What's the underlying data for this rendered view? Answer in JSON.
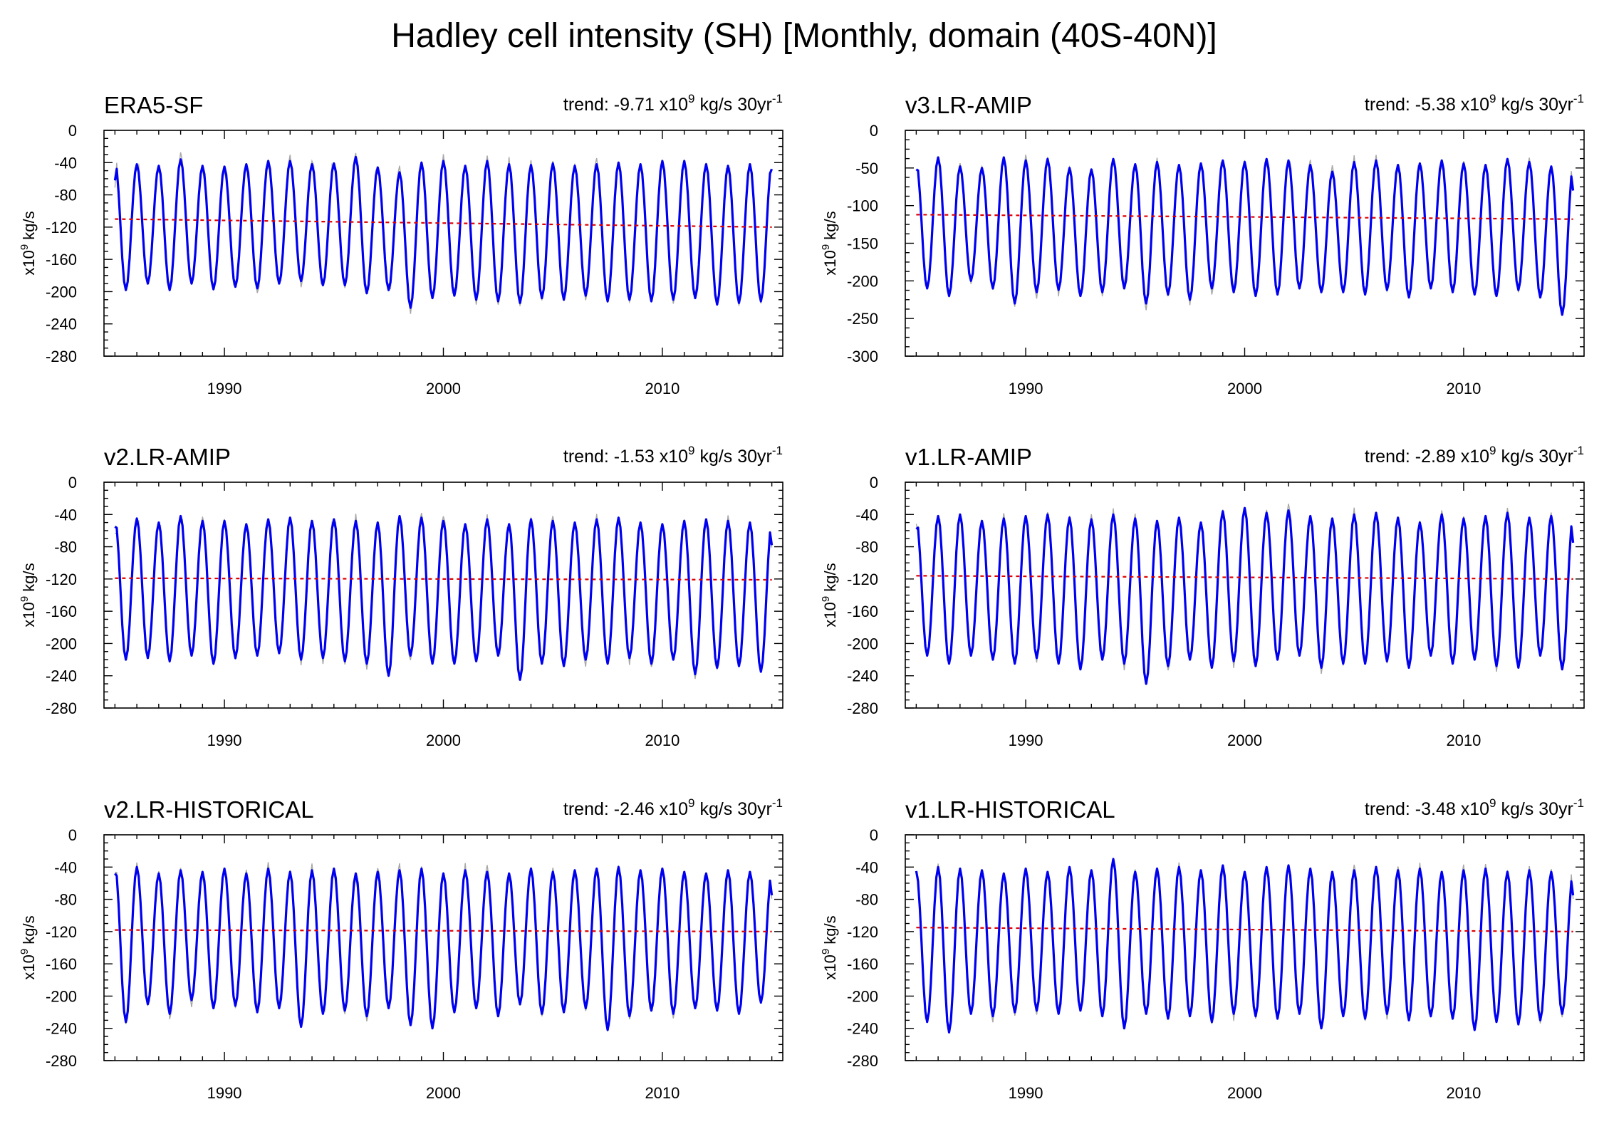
{
  "title": "Hadley cell intensity (SH) [Monthly, domain (40S-40N)]",
  "colors": {
    "smoothed": "#0000f0",
    "monthly": "#a8a8a8",
    "trend": "#e00000"
  },
  "chart_data": [
    {
      "type": "line",
      "title": "ERA5-SF",
      "trend_text": {
        "prefix": "trend: ",
        "value": "-9.71",
        "unit1": " x10",
        "exp1": "9",
        "unit2": " kg/s 30yr",
        "exp2": "-1"
      },
      "ylabel": {
        "base": "x10",
        "exp": "9",
        "unit": " kg/s"
      },
      "xlim": [
        1984.5,
        2015.5
      ],
      "ylim": [
        -280,
        0
      ],
      "yticks": [
        0,
        -40,
        -80,
        -120,
        -160,
        -200,
        -240,
        -280
      ],
      "ytick_labels": [
        "0",
        "-40",
        "-80",
        "-120",
        "-160",
        "-200",
        "-240",
        "-280"
      ],
      "xticks": [
        1990,
        2000,
        2010
      ],
      "xtick_labels": [
        "1990",
        "2000",
        "2010"
      ],
      "years": [
        1985,
        1986,
        1987,
        1988,
        1989,
        1990,
        1991,
        1992,
        1993,
        1994,
        1995,
        1996,
        1997,
        1998,
        1999,
        2000,
        2001,
        2002,
        2003,
        2004,
        2005,
        2006,
        2007,
        2008,
        2009,
        2010,
        2011,
        2012,
        2013,
        2014
      ],
      "annual_max": [
        -37,
        -42,
        -44,
        -36,
        -44,
        -45,
        -42,
        -38,
        -38,
        -42,
        -41,
        -33,
        -46,
        -52,
        -40,
        -38,
        -44,
        -38,
        -42,
        -43,
        -41,
        -44,
        -42,
        -40,
        -42,
        -38,
        -38,
        -42,
        -44,
        -42
      ],
      "annual_min": [
        -198,
        -190,
        -198,
        -190,
        -197,
        -194,
        -196,
        -190,
        -187,
        -192,
        -192,
        -202,
        -198,
        -220,
        -208,
        -205,
        -210,
        -212,
        -214,
        -208,
        -210,
        -205,
        -212,
        -210,
        -212,
        -210,
        -208,
        -216,
        -214,
        -212
      ],
      "start_value": -62,
      "end_value": -48,
      "trend": [
        -110,
        -120
      ]
    },
    {
      "type": "line",
      "title": "v3.LR-AMIP",
      "trend_text": {
        "prefix": "trend: ",
        "value": "-5.38",
        "unit1": " x10",
        "exp1": "9",
        "unit2": " kg/s 30yr",
        "exp2": "-1"
      },
      "ylabel": {
        "base": "x10",
        "exp": "9",
        "unit": " kg/s"
      },
      "xlim": [
        1984.5,
        2015.5
      ],
      "ylim": [
        -300,
        0
      ],
      "yticks": [
        0,
        -50,
        -100,
        -150,
        -200,
        -250,
        -300
      ],
      "ytick_labels": [
        "0",
        "-50",
        "-100",
        "-150",
        "-200",
        "-250",
        "-300"
      ],
      "xticks": [
        1990,
        2000,
        2010
      ],
      "xtick_labels": [
        "1990",
        "2000",
        "2010"
      ],
      "years": [
        1985,
        1986,
        1987,
        1988,
        1989,
        1990,
        1991,
        1992,
        1993,
        1994,
        1995,
        1996,
        1997,
        1998,
        1999,
        2000,
        2001,
        2002,
        2003,
        2004,
        2005,
        2006,
        2007,
        2008,
        2009,
        2010,
        2011,
        2012,
        2013,
        2014
      ],
      "annual_max": [
        -42,
        -36,
        -48,
        -50,
        -36,
        -40,
        -38,
        -50,
        -52,
        -38,
        -45,
        -42,
        -46,
        -44,
        -40,
        -42,
        -38,
        -40,
        -46,
        -55,
        -42,
        -40,
        -46,
        -44,
        -40,
        -44,
        -46,
        -38,
        -42,
        -48
      ],
      "annual_min": [
        -210,
        -220,
        -200,
        -210,
        -230,
        -215,
        -212,
        -220,
        -215,
        -210,
        -230,
        -218,
        -225,
        -210,
        -215,
        -220,
        -218,
        -210,
        -215,
        -215,
        -218,
        -212,
        -222,
        -210,
        -215,
        -218,
        -220,
        -212,
        -222,
        -245
      ],
      "start_value": -52,
      "end_value": -80,
      "trend": [
        -112,
        -118
      ]
    },
    {
      "type": "line",
      "title": "v2.LR-AMIP",
      "trend_text": {
        "prefix": "trend: ",
        "value": "-1.53",
        "unit1": " x10",
        "exp1": "9",
        "unit2": " kg/s 30yr",
        "exp2": "-1"
      },
      "ylabel": {
        "base": "x10",
        "exp": "9",
        "unit": " kg/s"
      },
      "xlim": [
        1984.5,
        2015.5
      ],
      "ylim": [
        -280,
        0
      ],
      "yticks": [
        0,
        -40,
        -80,
        -120,
        -160,
        -200,
        -240,
        -280
      ],
      "ytick_labels": [
        "0",
        "-40",
        "-80",
        "-120",
        "-160",
        "-200",
        "-240",
        "-280"
      ],
      "xticks": [
        1990,
        2000,
        2010
      ],
      "xtick_labels": [
        "1990",
        "2000",
        "2010"
      ],
      "years": [
        1985,
        1986,
        1987,
        1988,
        1989,
        1990,
        1991,
        1992,
        1993,
        1994,
        1995,
        1996,
        1997,
        1998,
        1999,
        2000,
        2001,
        2002,
        2003,
        2004,
        2005,
        2006,
        2007,
        2008,
        2009,
        2010,
        2011,
        2012,
        2013,
        2014
      ],
      "annual_max": [
        -45,
        -45,
        -50,
        -42,
        -48,
        -48,
        -52,
        -46,
        -44,
        -48,
        -46,
        -48,
        -50,
        -42,
        -44,
        -48,
        -52,
        -46,
        -52,
        -46,
        -48,
        -50,
        -46,
        -44,
        -50,
        -52,
        -48,
        -46,
        -48,
        -50
      ],
      "annual_min": [
        -220,
        -218,
        -222,
        -215,
        -225,
        -218,
        -215,
        -212,
        -220,
        -218,
        -222,
        -225,
        -240,
        -215,
        -225,
        -225,
        -222,
        -215,
        -245,
        -225,
        -228,
        -220,
        -225,
        -218,
        -225,
        -220,
        -238,
        -230,
        -228,
        -235
      ],
      "start_value": -55,
      "end_value": -78,
      "trend": [
        -119,
        -121
      ]
    },
    {
      "type": "line",
      "title": "v1.LR-AMIP",
      "trend_text": {
        "prefix": "trend: ",
        "value": "-2.89",
        "unit1": " x10",
        "exp1": "9",
        "unit2": " kg/s 30yr",
        "exp2": "-1"
      },
      "ylabel": {
        "base": "x10",
        "exp": "9",
        "unit": " kg/s"
      },
      "xlim": [
        1984.5,
        2015.5
      ],
      "ylim": [
        -280,
        0
      ],
      "yticks": [
        0,
        -40,
        -80,
        -120,
        -160,
        -200,
        -240,
        -280
      ],
      "ytick_labels": [
        "0",
        "-40",
        "-80",
        "-120",
        "-160",
        "-200",
        "-240",
        "-280"
      ],
      "xticks": [
        1990,
        2000,
        2010
      ],
      "xtick_labels": [
        "1990",
        "2000",
        "2010"
      ],
      "years": [
        1985,
        1986,
        1987,
        1988,
        1989,
        1990,
        1991,
        1992,
        1993,
        1994,
        1995,
        1996,
        1997,
        1998,
        1999,
        2000,
        2001,
        2002,
        2003,
        2004,
        2005,
        2006,
        2007,
        2008,
        2009,
        2010,
        2011,
        2012,
        2013,
        2014
      ],
      "annual_max": [
        -45,
        -42,
        -40,
        -48,
        -45,
        -42,
        -40,
        -44,
        -46,
        -40,
        -45,
        -48,
        -44,
        -50,
        -36,
        -32,
        -38,
        -35,
        -42,
        -45,
        -40,
        -38,
        -44,
        -50,
        -40,
        -45,
        -42,
        -38,
        -44,
        -42
      ],
      "annual_min": [
        -215,
        -225,
        -215,
        -220,
        -225,
        -218,
        -225,
        -232,
        -220,
        -225,
        -250,
        -228,
        -220,
        -230,
        -222,
        -228,
        -220,
        -215,
        -230,
        -225,
        -225,
        -222,
        -230,
        -215,
        -225,
        -220,
        -228,
        -230,
        -215,
        -232
      ],
      "start_value": -58,
      "end_value": -75,
      "trend": [
        -116,
        -120
      ]
    },
    {
      "type": "line",
      "title": "v2.LR-HISTORICAL",
      "trend_text": {
        "prefix": "trend: ",
        "value": "-2.46",
        "unit1": " x10",
        "exp1": "9",
        "unit2": " kg/s 30yr",
        "exp2": "-1"
      },
      "ylabel": {
        "base": "x10",
        "exp": "9",
        "unit": " kg/s"
      },
      "xlim": [
        1984.5,
        2015.5
      ],
      "ylim": [
        -280,
        0
      ],
      "yticks": [
        0,
        -40,
        -80,
        -120,
        -160,
        -200,
        -240,
        -280
      ],
      "ytick_labels": [
        "0",
        "-40",
        "-80",
        "-120",
        "-160",
        "-200",
        "-240",
        "-280"
      ],
      "xticks": [
        1990,
        2000,
        2010
      ],
      "xtick_labels": [
        "1990",
        "2000",
        "2010"
      ],
      "years": [
        1985,
        1986,
        1987,
        1988,
        1989,
        1990,
        1991,
        1992,
        1993,
        1994,
        1995,
        1996,
        1997,
        1998,
        1999,
        2000,
        2001,
        2002,
        2003,
        2004,
        2005,
        2006,
        2007,
        2008,
        2009,
        2010,
        2011,
        2012,
        2013,
        2014
      ],
      "annual_max": [
        -38,
        -40,
        -48,
        -44,
        -46,
        -42,
        -48,
        -42,
        -46,
        -44,
        -42,
        -48,
        -46,
        -44,
        -42,
        -48,
        -44,
        -46,
        -48,
        -42,
        -46,
        -44,
        -42,
        -40,
        -44,
        -42,
        -46,
        -48,
        -44,
        -46
      ],
      "annual_min": [
        -232,
        -210,
        -222,
        -205,
        -215,
        -212,
        -220,
        -215,
        -238,
        -222,
        -218,
        -225,
        -215,
        -236,
        -240,
        -220,
        -215,
        -225,
        -210,
        -222,
        -220,
        -215,
        -242,
        -225,
        -218,
        -222,
        -215,
        -218,
        -222,
        -208
      ],
      "start_value": -48,
      "end_value": -75,
      "trend": [
        -118,
        -120
      ]
    },
    {
      "type": "line",
      "title": "v1.LR-HISTORICAL",
      "trend_text": {
        "prefix": "trend: ",
        "value": "-3.48",
        "unit1": " x10",
        "exp1": "9",
        "unit2": " kg/s 30yr",
        "exp2": "-1"
      },
      "ylabel": {
        "base": "x10",
        "exp": "9",
        "unit": " kg/s"
      },
      "xlim": [
        1984.5,
        2015.5
      ],
      "ylim": [
        -280,
        0
      ],
      "yticks": [
        0,
        -40,
        -80,
        -120,
        -160,
        -200,
        -240,
        -280
      ],
      "ytick_labels": [
        "0",
        "-40",
        "-80",
        "-120",
        "-160",
        "-200",
        "-240",
        "-280"
      ],
      "xticks": [
        1990,
        2000,
        2010
      ],
      "xtick_labels": [
        "1990",
        "2000",
        "2010"
      ],
      "years": [
        1985,
        1986,
        1987,
        1988,
        1989,
        1990,
        1991,
        1992,
        1993,
        1994,
        1995,
        1996,
        1997,
        1998,
        1999,
        2000,
        2001,
        2002,
        2003,
        2004,
        2005,
        2006,
        2007,
        2008,
        2009,
        2010,
        2011,
        2012,
        2013,
        2014
      ],
      "annual_max": [
        -45,
        -40,
        -42,
        -44,
        -48,
        -42,
        -46,
        -40,
        -44,
        -30,
        -46,
        -42,
        -40,
        -44,
        -38,
        -46,
        -40,
        -38,
        -42,
        -46,
        -44,
        -40,
        -44,
        -42,
        -46,
        -44,
        -42,
        -46,
        -44,
        -46
      ],
      "annual_min": [
        -232,
        -245,
        -222,
        -225,
        -220,
        -218,
        -222,
        -218,
        -225,
        -240,
        -222,
        -228,
        -225,
        -232,
        -222,
        -225,
        -228,
        -222,
        -240,
        -225,
        -228,
        -222,
        -230,
        -225,
        -228,
        -242,
        -232,
        -235,
        -230,
        -222
      ],
      "start_value": -45,
      "end_value": -75,
      "trend": [
        -115,
        -120
      ]
    }
  ]
}
